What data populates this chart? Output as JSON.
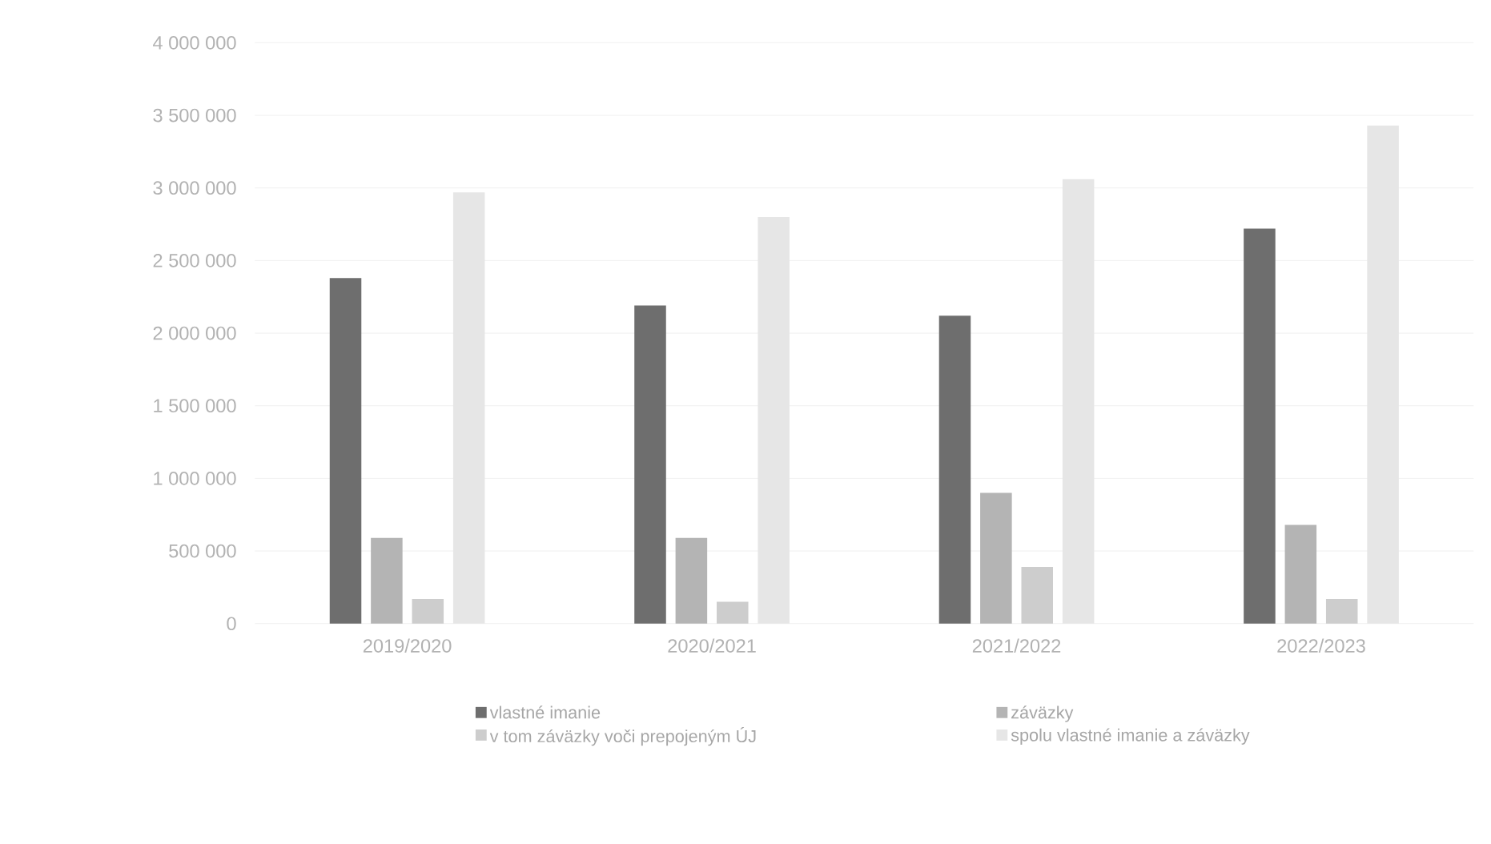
{
  "chart_data": {
    "type": "bar",
    "categories": [
      "2019/2020",
      "2020/2021",
      "2021/2022",
      "2022/2023"
    ],
    "series": [
      {
        "name": "vlastné imanie",
        "color": "#6e6e6e",
        "values": [
          2380000,
          2190000,
          2120000,
          2720000
        ]
      },
      {
        "name": "záväzky",
        "color": "#b4b4b4",
        "values": [
          590000,
          590000,
          900000,
          680000
        ]
      },
      {
        "name": "v tom záväzky voči prepojeným ÚJ",
        "color": "#cdcdcd",
        "values": [
          170000,
          150000,
          390000,
          170000
        ]
      },
      {
        "name": "spolu vlastné imanie a záväzky",
        "color": "#e6e6e6",
        "values": [
          2970000,
          2800000,
          3060000,
          3430000
        ]
      }
    ],
    "ylim": [
      0,
      4000000
    ],
    "yticks": [
      {
        "value": 0,
        "label": "0"
      },
      {
        "value": 500000,
        "label": "500 000"
      },
      {
        "value": 1000000,
        "label": "1 000 000"
      },
      {
        "value": 1500000,
        "label": "1 500 000"
      },
      {
        "value": 2000000,
        "label": "2 000 000"
      },
      {
        "value": 2500000,
        "label": "2 500 000"
      },
      {
        "value": 3000000,
        "label": "3 000 000"
      },
      {
        "value": 3500000,
        "label": "3 500 000"
      },
      {
        "value": 4000000,
        "label": "4 000 000"
      }
    ],
    "grid": "y",
    "legend": "bottom"
  }
}
